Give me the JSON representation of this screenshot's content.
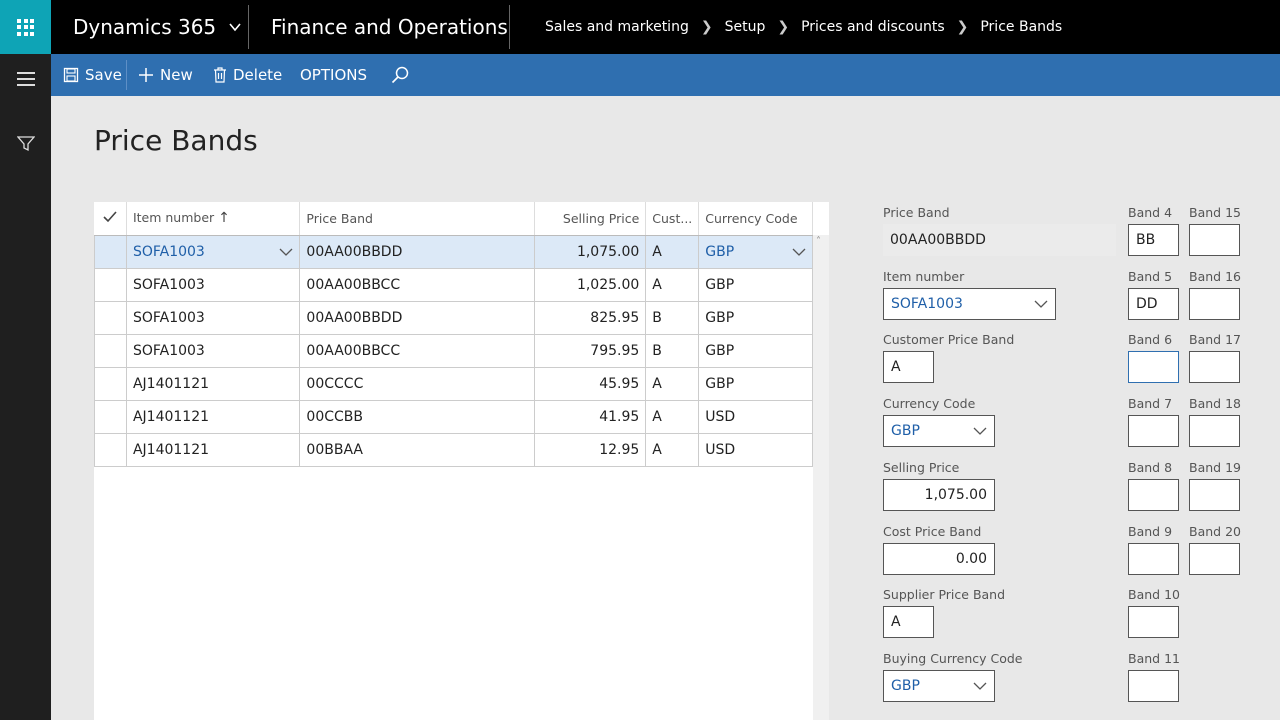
{
  "topbar": {
    "app_name": "Dynamics 365",
    "module": "Finance and Operations",
    "breadcrumbs": [
      "Sales and marketing",
      "Setup",
      "Prices and discounts",
      "Price Bands"
    ]
  },
  "actions": {
    "save": "Save",
    "new": "New",
    "delete": "Delete",
    "options": "OPTIONS"
  },
  "page": {
    "title": "Price Bands"
  },
  "grid": {
    "columns": [
      "Item number",
      "Price Band",
      "Selling Price",
      "Cust...",
      "Currency Code"
    ],
    "rows": [
      [
        "SOFA1003",
        "00AA00BBDD",
        "1,075.00",
        "A",
        "GBP"
      ],
      [
        "SOFA1003",
        "00AA00BBCC",
        "1,025.00",
        "A",
        "GBP"
      ],
      [
        "SOFA1003",
        "00AA00BBDD",
        "825.95",
        "B",
        "GBP"
      ],
      [
        "SOFA1003",
        "00AA00BBCC",
        "795.95",
        "B",
        "GBP"
      ],
      [
        "AJ1401121",
        "00CCCC",
        "45.95",
        "A",
        "GBP"
      ],
      [
        "AJ1401121",
        "00CCBB",
        "41.95",
        "A",
        "USD"
      ],
      [
        "AJ1401121",
        "00BBAA",
        "12.95",
        "A",
        "USD"
      ]
    ]
  },
  "detail": {
    "price_band_label": "Price Band",
    "price_band_value": "00AA00BBDD",
    "item_number_label": "Item number",
    "item_number_value": "SOFA1003",
    "customer_price_band_label": "Customer Price Band",
    "customer_price_band_value": "A",
    "currency_code_label": "Currency Code",
    "currency_code_value": "GBP",
    "selling_price_label": "Selling Price",
    "selling_price_value": "1,075.00",
    "cost_price_band_label": "Cost Price Band",
    "cost_price_band_value": "0.00",
    "supplier_price_band_label": "Supplier Price Band",
    "supplier_price_band_value": "A",
    "buying_currency_label": "Buying Currency Code",
    "buying_currency_value": "GBP",
    "bands_col1": [
      {
        "label": "Band 4",
        "value": "BB"
      },
      {
        "label": "Band 5",
        "value": "DD"
      },
      {
        "label": "Band 6",
        "value": ""
      },
      {
        "label": "Band 7",
        "value": ""
      },
      {
        "label": "Band 8",
        "value": ""
      },
      {
        "label": "Band 9",
        "value": ""
      },
      {
        "label": "Band 10",
        "value": ""
      },
      {
        "label": "Band 11",
        "value": ""
      }
    ],
    "bands_col2": [
      {
        "label": "Band 15",
        "value": ""
      },
      {
        "label": "Band 16",
        "value": ""
      },
      {
        "label": "Band 17",
        "value": ""
      },
      {
        "label": "Band 18",
        "value": ""
      },
      {
        "label": "Band 19",
        "value": ""
      },
      {
        "label": "Band 20",
        "value": ""
      }
    ]
  }
}
